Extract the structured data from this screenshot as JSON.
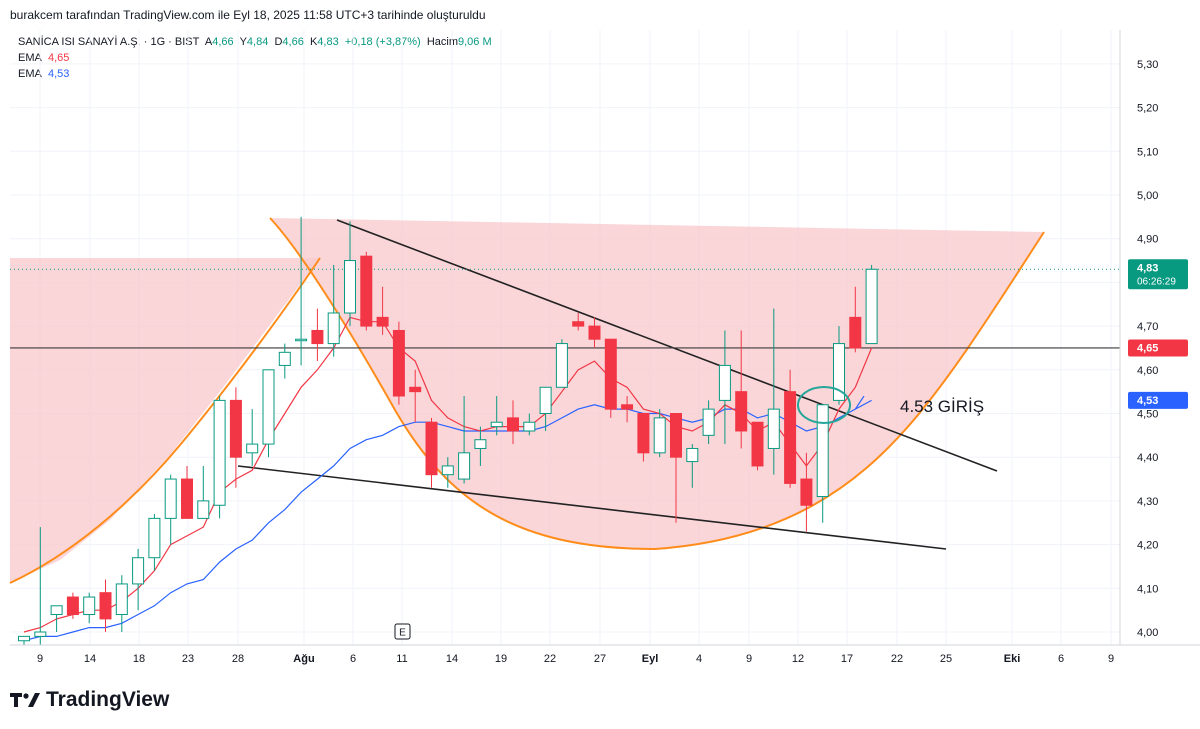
{
  "header": {
    "credit": "burakcem tarafından TradingView.com ile Eyl 18, 2025 11:58 UTC+3 tarihinde oluşturuldu"
  },
  "legend": {
    "symbol": "SANİCA ISI SANAYİ A.Ş. · 1G · BIST",
    "open_label": "A",
    "open_value": "4,66",
    "high_label": "Y",
    "high_value": "4,84",
    "low_label": "D",
    "low_value": "4,66",
    "close_label": "K",
    "close_value": "4,83",
    "change": "+0,18 (+3,87%)",
    "volume_label": "Hacim",
    "volume_value": "9,06 M",
    "ema1_label": "EMA",
    "ema1_value": "4,65",
    "ema2_label": "EMA",
    "ema2_value": "4,53"
  },
  "brand": {
    "name": "TradingView"
  },
  "colors": {
    "up": "#089981",
    "down": "#f23645",
    "ema_fast": "#f23645",
    "ema_slow": "#2962ff",
    "cup_fill": "#f8c8cc",
    "cup_stroke": "#ff8c1a",
    "trend": "#222222",
    "circle": "#26a69a"
  },
  "chart_data": {
    "type": "candlestick",
    "ylim": [
      3.97,
      5.37
    ],
    "y_ticks": [
      "5,30",
      "5,20",
      "5,10",
      "5,00",
      "4,90",
      "4,80",
      "4,70",
      "4,60",
      "4,50",
      "4,40",
      "4,30",
      "4,20",
      "4,10",
      "4,00"
    ],
    "x_ticks": [
      "9",
      "14",
      "18",
      "23",
      "28",
      "Ağu",
      "6",
      "11",
      "14",
      "19",
      "22",
      "27",
      "Eyl",
      "4",
      "9",
      "12",
      "17",
      "22",
      "25",
      "Eki",
      "6",
      "9"
    ],
    "price_labels": [
      {
        "value": 4.83,
        "text": "4,83",
        "sub": "06:26:29",
        "color": "#089981"
      },
      {
        "value": 4.65,
        "text": "4,65",
        "color": "#f23645"
      },
      {
        "value": 4.53,
        "text": "4,53",
        "color": "#2962ff"
      }
    ],
    "annotation": "4.53 GİRİŞ",
    "event_marker": "E",
    "candles": [
      [
        3.98,
        3.99,
        3.97,
        3.99
      ],
      [
        3.99,
        4.24,
        3.97,
        4.0
      ],
      [
        4.04,
        4.06,
        4.0,
        4.06
      ],
      [
        4.08,
        4.09,
        4.03,
        4.04
      ],
      [
        4.04,
        4.09,
        4.02,
        4.08
      ],
      [
        4.09,
        4.12,
        4.0,
        4.03
      ],
      [
        4.04,
        4.13,
        4.0,
        4.11
      ],
      [
        4.11,
        4.19,
        4.05,
        4.17
      ],
      [
        4.17,
        4.27,
        4.14,
        4.26
      ],
      [
        4.26,
        4.36,
        4.2,
        4.35
      ],
      [
        4.35,
        4.38,
        4.26,
        4.26
      ],
      [
        4.26,
        4.38,
        4.26,
        4.3
      ],
      [
        4.29,
        4.54,
        4.26,
        4.53
      ],
      [
        4.53,
        4.56,
        4.33,
        4.4
      ],
      [
        4.41,
        4.51,
        4.38,
        4.43
      ],
      [
        4.43,
        4.6,
        4.4,
        4.6
      ],
      [
        4.61,
        4.66,
        4.58,
        4.64
      ],
      [
        4.67,
        4.95,
        4.61,
        4.67
      ],
      [
        4.69,
        4.74,
        4.62,
        4.66
      ],
      [
        4.66,
        4.84,
        4.63,
        4.73
      ],
      [
        4.73,
        4.94,
        4.7,
        4.85
      ],
      [
        4.86,
        4.87,
        4.69,
        4.7
      ],
      [
        4.72,
        4.79,
        4.68,
        4.7
      ],
      [
        4.69,
        4.71,
        4.52,
        4.54
      ],
      [
        4.56,
        4.6,
        4.48,
        4.55
      ],
      [
        4.48,
        4.49,
        4.33,
        4.36
      ],
      [
        4.36,
        4.4,
        4.33,
        4.38
      ],
      [
        4.35,
        4.54,
        4.34,
        4.41
      ],
      [
        4.42,
        4.47,
        4.38,
        4.44
      ],
      [
        4.47,
        4.54,
        4.45,
        4.48
      ],
      [
        4.49,
        4.53,
        4.43,
        4.46
      ],
      [
        4.46,
        4.5,
        4.45,
        4.48
      ],
      [
        4.5,
        4.55,
        4.46,
        4.56
      ],
      [
        4.56,
        4.67,
        4.56,
        4.66
      ],
      [
        4.71,
        4.73,
        4.69,
        4.7
      ],
      [
        4.7,
        4.72,
        4.65,
        4.67
      ],
      [
        4.67,
        4.67,
        4.49,
        4.51
      ],
      [
        4.52,
        4.54,
        4.48,
        4.51
      ],
      [
        4.5,
        4.5,
        4.39,
        4.41
      ],
      [
        4.41,
        4.51,
        4.4,
        4.49
      ],
      [
        4.5,
        4.5,
        4.25,
        4.4
      ],
      [
        4.39,
        4.43,
        4.33,
        4.42
      ],
      [
        4.45,
        4.53,
        4.43,
        4.51
      ],
      [
        4.53,
        4.69,
        4.43,
        4.61
      ],
      [
        4.55,
        4.69,
        4.42,
        4.46
      ],
      [
        4.48,
        4.48,
        4.37,
        4.38
      ],
      [
        4.42,
        4.74,
        4.36,
        4.51
      ],
      [
        4.55,
        4.6,
        4.33,
        4.34
      ],
      [
        4.35,
        4.41,
        4.23,
        4.29
      ],
      [
        4.31,
        4.51,
        4.25,
        4.52
      ],
      [
        4.53,
        4.7,
        4.52,
        4.66
      ],
      [
        4.72,
        4.79,
        4.64,
        4.65
      ],
      [
        4.66,
        4.84,
        4.66,
        4.83
      ]
    ],
    "ema_fast": [
      4.0,
      4.01,
      4.03,
      4.04,
      4.05,
      4.05,
      4.07,
      4.1,
      4.14,
      4.2,
      4.22,
      4.24,
      4.32,
      4.35,
      4.37,
      4.44,
      4.5,
      4.56,
      4.6,
      4.65,
      4.72,
      4.71,
      4.71,
      4.65,
      4.62,
      4.53,
      4.49,
      4.47,
      4.46,
      4.47,
      4.47,
      4.47,
      4.5,
      4.55,
      4.6,
      4.62,
      4.58,
      4.56,
      4.51,
      4.5,
      4.47,
      4.46,
      4.48,
      4.52,
      4.5,
      4.46,
      4.48,
      4.43,
      4.38,
      4.43,
      4.51,
      4.56,
      4.65
    ],
    "ema_slow": [
      3.98,
      3.99,
      3.99,
      4.0,
      4.01,
      4.01,
      4.02,
      4.04,
      4.06,
      4.09,
      4.11,
      4.12,
      4.16,
      4.19,
      4.21,
      4.25,
      4.28,
      4.32,
      4.35,
      4.38,
      4.42,
      4.44,
      4.45,
      4.47,
      4.48,
      4.48,
      4.47,
      4.46,
      4.46,
      4.46,
      4.46,
      4.46,
      4.47,
      4.49,
      4.51,
      4.52,
      4.51,
      4.51,
      4.5,
      4.5,
      4.49,
      4.48,
      4.49,
      4.51,
      4.51,
      4.49,
      4.5,
      4.48,
      4.46,
      4.47,
      4.49,
      4.51,
      4.53
    ]
  }
}
